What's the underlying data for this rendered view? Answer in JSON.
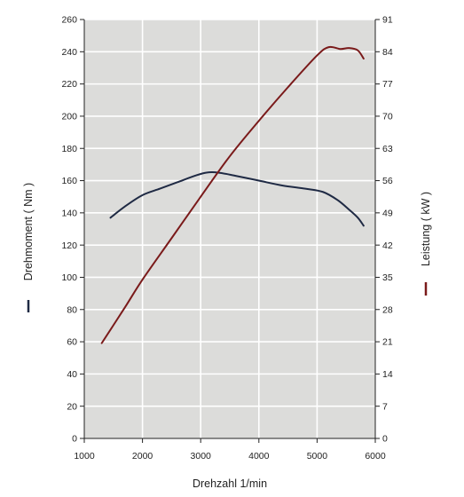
{
  "chart_data": {
    "type": "line",
    "xlabel": "Drehzahl  1/min",
    "ylabel_left": "Drehmoment  ( Nm )",
    "ylabel_right": "Leistung  ( kW )",
    "x_ticks": [
      1000,
      2000,
      3000,
      4000,
      5000,
      6000
    ],
    "y_left_ticks": [
      0,
      20,
      40,
      60,
      80,
      100,
      120,
      140,
      160,
      180,
      200,
      220,
      240,
      260
    ],
    "y_right_ticks": [
      0,
      7,
      14,
      21,
      28,
      35,
      42,
      49,
      56,
      63,
      70,
      77,
      84,
      91
    ],
    "xlim": [
      1000,
      6000
    ],
    "ylim_left": [
      0,
      260
    ],
    "ylim_right": [
      0,
      91
    ],
    "grid": true,
    "colors": {
      "plot_bg": "#dcdcda",
      "grid": "#ffffff",
      "torque": "#1f2a44",
      "power": "#7a1a1a",
      "axis": "#222222"
    },
    "series": [
      {
        "name": "Drehmoment",
        "axis": "left",
        "x": [
          1450,
          1700,
          2000,
          2300,
          2600,
          2900,
          3100,
          3300,
          3600,
          4000,
          4400,
          4800,
          5100,
          5350,
          5550,
          5700,
          5800
        ],
        "y": [
          137,
          144,
          151,
          155,
          159,
          163,
          165,
          165,
          163,
          160,
          157,
          155,
          153,
          148,
          142,
          137,
          132
        ]
      },
      {
        "name": "Leistung",
        "axis": "right",
        "x": [
          1300,
          1700,
          2000,
          2500,
          3000,
          3500,
          4000,
          4500,
          5000,
          5200,
          5400,
          5550,
          5700,
          5800
        ],
        "y": [
          20.7,
          28.5,
          34.5,
          43.5,
          52.5,
          61.3,
          69.0,
          76.3,
          83.2,
          85.0,
          84.6,
          84.8,
          84.3,
          82.5
        ]
      }
    ]
  }
}
